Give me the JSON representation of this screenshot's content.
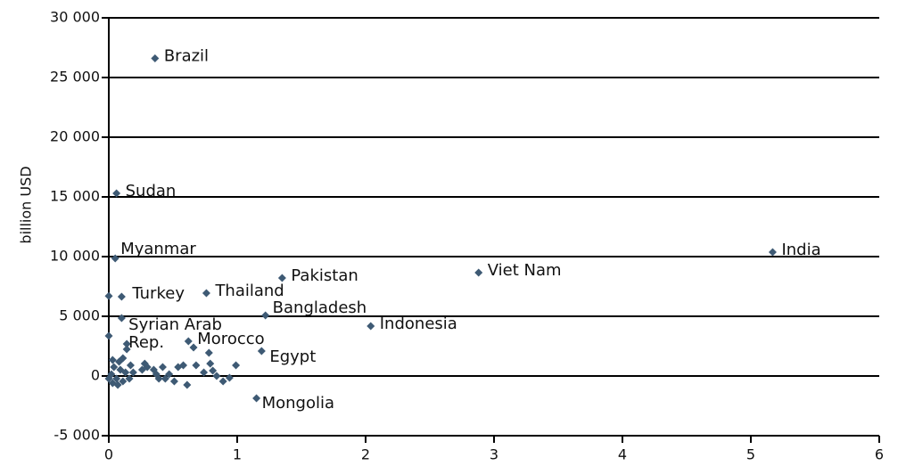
{
  "chart_data": {
    "type": "scatter",
    "y_label": "billion USD",
    "xlim": [
      0,
      6
    ],
    "xticks": [
      0,
      1,
      2,
      3,
      4,
      5,
      6
    ],
    "ylim": [
      -5000,
      30000
    ],
    "yticks": [
      {
        "value": -5000,
        "label": "-5 000"
      },
      0,
      {
        "value": 5000,
        "label": "5 000"
      },
      {
        "value": 10000,
        "label": "10 000"
      },
      {
        "value": 15000,
        "label": "15 000"
      },
      {
        "value": 20000,
        "label": "20 000"
      },
      {
        "value": 25000,
        "label": "25 000"
      },
      {
        "value": 30000,
        "label": "30 000"
      }
    ],
    "grid": true,
    "color": "#3e5a74",
    "x": [
      0.36,
      0.06,
      0.05,
      0.1,
      0.76,
      1.35,
      2.88,
      5.17,
      1.22,
      2.04,
      0.14,
      0.62,
      1.19,
      0.14,
      1.15,
      0.0,
      0.1,
      0.0,
      0.03,
      0.08,
      0.11,
      0.04,
      0.09,
      0.13,
      0.17,
      0.19,
      0.02,
      0.06,
      0.03,
      0.07,
      0.11,
      0.16,
      0.28,
      0.3,
      0.35,
      0.37,
      0.39,
      0.42,
      0.47,
      0.51,
      0.54,
      0.58,
      0.61,
      0.68,
      0.74,
      0.79,
      0.81,
      0.84,
      0.89,
      0.94,
      0.99,
      0.78,
      0.26,
      0.44,
      0.0,
      0.66
    ],
    "values": [
      26600,
      15300,
      9850,
      6640,
      6940,
      8210,
      8660,
      10370,
      5070,
      4180,
      2690,
      2910,
      2090,
      2240,
      -1870,
      6700,
      4850,
      3360,
      1340,
      1190,
      1490,
      750,
      520,
      300,
      900,
      300,
      150,
      -220,
      -600,
      -750,
      -450,
      -220,
      1040,
      750,
      520,
      150,
      -220,
      750,
      150,
      -450,
      750,
      900,
      -750,
      900,
      300,
      1040,
      450,
      0,
      -450,
      -150,
      900,
      1940,
      520,
      -220,
      -220,
      2390
    ],
    "point_labels": [
      "Brazil",
      "Sudan",
      "Myanmar",
      "Turkey",
      "Thailand",
      "Pakistan",
      "Viet Nam",
      "India",
      "Bangladesh",
      "Indonesia",
      [
        "Syrian Arab",
        "Rep."
      ],
      "Morocco",
      "Egypt",
      null,
      "Mongolia",
      null,
      null,
      null,
      null,
      null,
      null,
      null,
      null,
      null,
      null,
      null,
      null,
      null,
      null,
      null,
      null,
      null,
      null,
      null,
      null,
      null,
      null,
      null,
      null,
      null,
      null,
      null,
      null,
      null,
      null,
      null,
      null,
      null,
      null,
      null,
      null,
      null,
      null,
      null,
      null,
      null
    ]
  }
}
